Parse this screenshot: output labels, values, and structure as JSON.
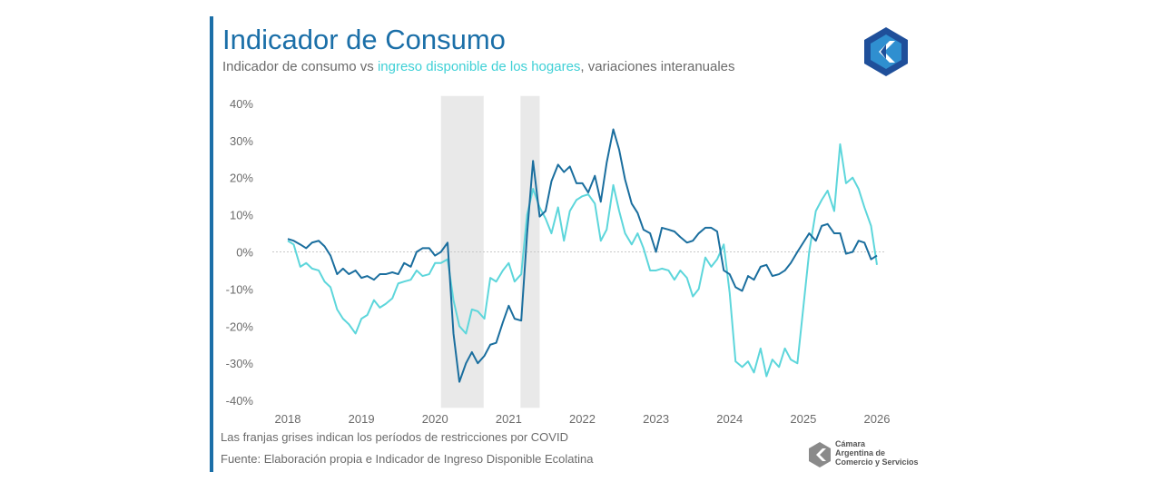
{
  "chart_data": {
    "type": "line",
    "title": "Indicador de Consumo",
    "subtitle": [
      "Indicador de consumo vs ",
      "ingreso disponible de los hogares",
      ", variaciones interanuales"
    ],
    "notes": [
      "Las franjas grises indican los períodos de restricciones por COVID",
      "Fuente: Elaboración propia e Indicador de Ingreso Disponible Ecolatina"
    ],
    "logo_text": [
      "Cámara",
      "Argentina de",
      "Comercio y Servicios"
    ],
    "xlim": [
      2017.7,
      2026.3
    ],
    "xticks": [
      2018,
      2019,
      2020,
      2021,
      2022,
      2023,
      2024,
      2025,
      2026
    ],
    "ylim": [
      -42,
      42
    ],
    "yticks": [
      {
        "value": 40,
        "label": "40%"
      },
      {
        "value": 30,
        "label": "30%"
      },
      {
        "value": 20,
        "label": "20%"
      },
      {
        "value": 10,
        "label": "10%"
      },
      {
        "value": 0,
        "label": "0%"
      },
      {
        "value": -10,
        "label": "-10%"
      },
      {
        "value": -20,
        "label": "-20%"
      },
      {
        "value": -30,
        "label": "-30%"
      },
      {
        "value": -40,
        "label": "-40%"
      }
    ],
    "shaded_ranges": [
      [
        2020.08,
        2020.66
      ],
      [
        2021.16,
        2021.42
      ]
    ],
    "x": [
      2018,
      2018.08,
      2018.17,
      2018.25,
      2018.33,
      2018.42,
      2018.5,
      2018.58,
      2018.67,
      2018.75,
      2018.83,
      2018.92,
      2019,
      2019.08,
      2019.17,
      2019.25,
      2019.33,
      2019.42,
      2019.5,
      2019.58,
      2019.67,
      2019.75,
      2019.83,
      2019.92,
      2020,
      2020.08,
      2020.17,
      2020.25,
      2020.33,
      2020.42,
      2020.5,
      2020.58,
      2020.67,
      2020.75,
      2020.83,
      2020.92,
      2021,
      2021.08,
      2021.17,
      2021.25,
      2021.33,
      2021.42,
      2021.5,
      2021.58,
      2021.67,
      2021.75,
      2021.83,
      2021.92,
      2022,
      2022.08,
      2022.17,
      2022.25,
      2022.33,
      2022.42,
      2022.5,
      2022.58,
      2022.67,
      2022.75,
      2022.83,
      2022.92,
      2023,
      2023.08,
      2023.17,
      2023.25,
      2023.33,
      2023.42,
      2023.5,
      2023.58,
      2023.67,
      2023.75,
      2023.83,
      2023.92,
      2024,
      2024.08,
      2024.17,
      2024.25,
      2024.33,
      2024.42,
      2024.5,
      2024.58,
      2024.67,
      2024.75,
      2024.83,
      2024.92,
      2025,
      2025.08,
      2025.17,
      2025.25,
      2025.33,
      2025.42,
      2025.5,
      2025.58,
      2025.67,
      2025.75,
      2025.83,
      2025.92,
      2026
    ],
    "series": [
      {
        "color": "#1a6e9e",
        "values": [
          3.5,
          3,
          2,
          1,
          2.5,
          3,
          1.5,
          -1,
          -6,
          -4.5,
          -6,
          -5,
          -7,
          -6.5,
          -7.5,
          -6,
          -6,
          -5.5,
          -6,
          -3,
          -4,
          0,
          1,
          1,
          -1,
          0,
          2.5,
          -22,
          -35,
          -30,
          -27,
          -30,
          -28,
          -25,
          -24.5,
          -19,
          -14.5,
          -18,
          -18.5,
          5,
          24.5,
          9.5,
          11,
          19,
          23.5,
          21.5,
          23,
          18.5,
          18.5,
          16,
          20.5,
          13.5,
          24,
          33,
          27.5,
          19.5,
          13,
          10.5,
          6,
          5,
          0,
          6.5,
          6,
          5.5,
          4,
          2.5,
          3,
          5,
          6.5,
          6.5,
          5.5,
          -5,
          -6,
          -9.5,
          -10.5,
          -6.5,
          -7.5,
          -4,
          -3.5,
          -6.5,
          -6,
          -5,
          -3,
          0,
          2.5,
          5,
          3,
          7,
          7.5,
          5,
          5,
          -0.5,
          0,
          3,
          2.5,
          -2,
          -1
        ]
      },
      {
        "color": "#5dd6db",
        "values": [
          3,
          2,
          -4,
          -3,
          -4.5,
          -5,
          -8,
          -9.5,
          -15.5,
          -18,
          -19.5,
          -22,
          -18,
          -17,
          -13,
          -15,
          -14,
          -12.5,
          -8.5,
          -8,
          -7.5,
          -5,
          -6.5,
          -6,
          -3,
          -3,
          -2,
          -13,
          -20,
          -22,
          -15.5,
          -16,
          -18,
          -7,
          -8,
          -5,
          -3,
          -8,
          -6,
          10,
          17,
          12,
          9,
          5,
          12,
          3,
          11,
          14,
          15,
          15.5,
          13,
          3,
          6,
          18,
          11,
          5,
          2,
          5,
          1,
          -5,
          -5,
          -4.5,
          -5,
          -7.5,
          -5,
          -7,
          -12,
          -10,
          -1.5,
          -4,
          -2,
          2,
          -11,
          -29.5,
          -31,
          -29.5,
          -32.5,
          -26,
          -33.5,
          -29,
          -31,
          -26,
          -29,
          -30,
          -15,
          0,
          11,
          14,
          16.5,
          11,
          29,
          18.5,
          20,
          17,
          12,
          7,
          -3.5
        ]
      }
    ]
  }
}
